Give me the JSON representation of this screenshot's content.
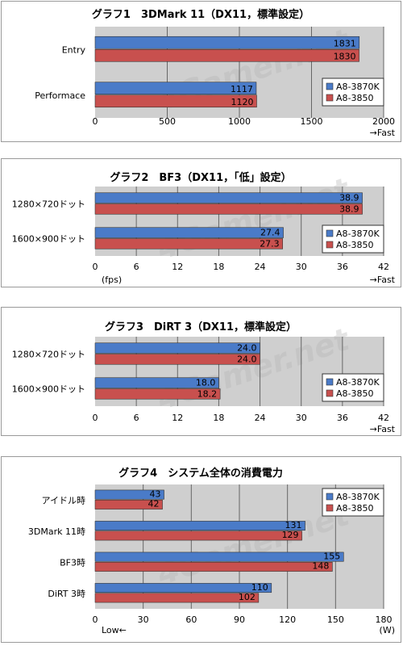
{
  "colors": {
    "series1": "#4a7bc8",
    "series2": "#c8504e",
    "plot_bg": "#cfcfcf",
    "grid": "#ffffff"
  },
  "watermark": "4Gamer.net",
  "chart_data": [
    {
      "type": "bar",
      "title": "グラフ1　3DMark 11（DX11，標準設定）",
      "categories": [
        "Entry",
        "Performace"
      ],
      "series": [
        {
          "name": "A8-3870K",
          "values": [
            1831,
            1117
          ]
        },
        {
          "name": "A8-3850",
          "values": [
            1830,
            1120
          ]
        }
      ],
      "xticks": [
        "0",
        "500",
        "1000",
        "1500",
        "2000"
      ],
      "xlim": [
        0,
        2000
      ],
      "axis_note_left": "",
      "axis_note_right": "→Fast",
      "value_labels": [
        [
          "1831",
          "1117"
        ],
        [
          "1830",
          "1120"
        ]
      ],
      "legend": "right"
    },
    {
      "type": "bar",
      "title": "グラフ2　BF3（DX11，「低」設定）",
      "categories": [
        "1280×720ドット",
        "1600×900ドット"
      ],
      "series": [
        {
          "name": "A8-3870K",
          "values": [
            38.9,
            27.4
          ]
        },
        {
          "name": "A8-3850",
          "values": [
            38.9,
            27.3
          ]
        }
      ],
      "xticks": [
        "0",
        "6",
        "12",
        "18",
        "24",
        "30",
        "36",
        "42"
      ],
      "xlim": [
        0,
        42
      ],
      "axis_note_left": "(fps)",
      "axis_note_right": "→Fast",
      "value_labels": [
        [
          "38.9",
          "27.4"
        ],
        [
          "38.9",
          "27.3"
        ]
      ],
      "legend": "right"
    },
    {
      "type": "bar",
      "title": "グラフ3　DiRT 3（DX11，標準設定）",
      "categories": [
        "1280×720ドット",
        "1600×900ドット"
      ],
      "series": [
        {
          "name": "A8-3870K",
          "values": [
            24.0,
            18.0
          ]
        },
        {
          "name": "A8-3850",
          "values": [
            24.0,
            18.2
          ]
        }
      ],
      "xticks": [
        "0",
        "6",
        "12",
        "18",
        "24",
        "30",
        "36",
        "42"
      ],
      "xlim": [
        0,
        42
      ],
      "axis_note_left": "",
      "axis_note_right": "→Fast",
      "value_labels": [
        [
          "24.0",
          "18.0"
        ],
        [
          "24.0",
          "18.2"
        ]
      ],
      "legend": "right"
    },
    {
      "type": "bar",
      "title": "グラフ4　システム全体の消費電力",
      "categories": [
        "アイドル時",
        "3DMark 11時",
        "BF3時",
        "DiRT 3時"
      ],
      "series": [
        {
          "name": "A8-3870K",
          "values": [
            43,
            131,
            155,
            110
          ]
        },
        {
          "name": "A8-3850",
          "values": [
            42,
            129,
            148,
            102
          ]
        }
      ],
      "xticks": [
        "0",
        "30",
        "60",
        "90",
        "120",
        "150",
        "180"
      ],
      "xlim": [
        0,
        180
      ],
      "axis_note_left": "Low←",
      "axis_note_right": "(W)",
      "value_labels": [
        [
          "43",
          "131",
          "155",
          "110"
        ],
        [
          "42",
          "129",
          "148",
          "102"
        ]
      ],
      "legend": "top-right"
    }
  ]
}
